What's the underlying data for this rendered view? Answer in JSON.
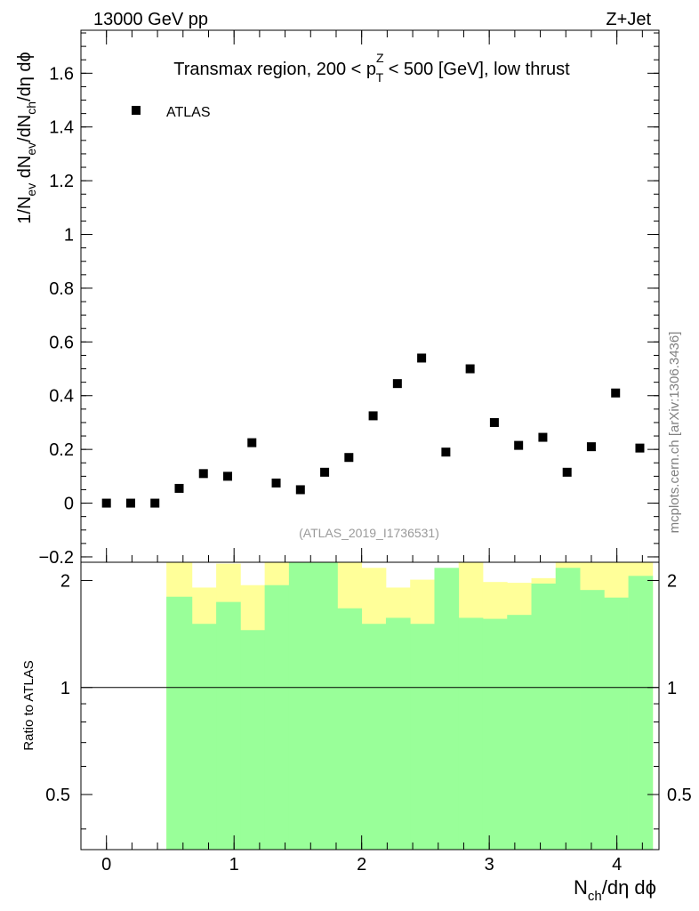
{
  "header": {
    "left": "13000 GeV pp",
    "right": "Z+Jet"
  },
  "side_label": "mcplots.cern.ch [arXiv:1306.3436]",
  "chart_data": [
    {
      "type": "scatter",
      "title_parts": [
        "Transmax region, 200 < p",
        "Z",
        "T",
        " < 500 [GeV], low thrust"
      ],
      "ylabel_parts": [
        "1/N",
        "ev",
        " dN",
        "ev",
        "/dN",
        "ch",
        "/dη dϕ"
      ],
      "watermark": "(ATLAS_2019_I1736531)",
      "xlim": [
        -0.2,
        4.33
      ],
      "ylim": [
        -0.22,
        1.76
      ],
      "yticks": [
        -0.2,
        0,
        0.2,
        0.4,
        0.6,
        0.8,
        1,
        1.2,
        1.4,
        1.6
      ],
      "ytick_labels": [
        "−0.2",
        "0",
        "0.2",
        "0.4",
        "0.6",
        "0.8",
        "1",
        "1.2",
        "1.4",
        "1.6"
      ],
      "legend_position": "top-left",
      "series": [
        {
          "name": "ATLAS",
          "marker": "square",
          "color": "#000000",
          "x": [
            0.0,
            0.19,
            0.38,
            0.57,
            0.76,
            0.95,
            1.14,
            1.33,
            1.52,
            1.71,
            1.9,
            2.09,
            2.28,
            2.47,
            2.66,
            2.85,
            3.04,
            3.23,
            3.42,
            3.61,
            3.8,
            3.99,
            4.18
          ],
          "y": [
            0.0,
            0.0,
            0.0,
            0.055,
            0.11,
            0.1,
            0.225,
            0.075,
            0.05,
            0.115,
            0.17,
            0.325,
            0.445,
            0.54,
            0.19,
            0.5,
            0.3,
            0.215,
            0.245,
            0.115,
            0.21,
            0.41,
            0.205
          ]
        }
      ]
    },
    {
      "type": "area",
      "ylabel": "Ratio to ATLAS",
      "xlabel_parts": [
        "N",
        "ch",
        "/dη dϕ"
      ],
      "xlim": [
        -0.2,
        4.33
      ],
      "ylim": [
        0.35,
        2.25
      ],
      "ratio_line": 1,
      "xticks": [
        0,
        1,
        2,
        3,
        4
      ],
      "xtick_labels": [
        "0",
        "1",
        "2",
        "3",
        "4"
      ],
      "yticks": [
        0.5,
        1,
        2
      ],
      "ytick_labels": [
        "0.5",
        "1",
        "2"
      ],
      "bin_edges": [
        0.47,
        0.67,
        0.86,
        1.05,
        1.24,
        1.43,
        1.62,
        1.81,
        2.0,
        2.19,
        2.38,
        2.57,
        2.76,
        2.95,
        3.14,
        3.33,
        3.52,
        3.71,
        3.9,
        4.09,
        4.28
      ],
      "bands": [
        {
          "name": "yellow-band",
          "color": "#ffff99",
          "low": [
            0.35,
            0.57,
            0.35,
            0.35,
            0.66,
            0.35,
            0.35,
            0.35,
            0.35,
            0.58,
            0.48,
            0.57,
            0.35,
            0.51,
            0.52,
            0.46,
            0.35,
            0.35,
            0.35,
            0.35
          ],
          "high": [
            2.25,
            1.91,
            2.23,
            1.94,
            2.25,
            2.25,
            2.25,
            2.25,
            2.17,
            1.91,
            2.01,
            1.91,
            2.25,
            1.98,
            1.97,
            2.03,
            2.25,
            2.25,
            2.25,
            2.25
          ]
        },
        {
          "name": "green-band",
          "color": "#99ff99",
          "low": [
            0.35,
            0.35,
            0.35,
            0.35,
            0.35,
            0.35,
            0.35,
            0.35,
            0.35,
            0.35,
            0.35,
            0.35,
            0.35,
            0.35,
            0.35,
            0.35,
            0.35,
            0.35,
            0.35,
            0.35
          ],
          "high": [
            1.8,
            1.51,
            1.74,
            1.45,
            1.94,
            2.25,
            2.25,
            1.67,
            1.51,
            1.57,
            1.51,
            2.17,
            1.57,
            1.56,
            1.6,
            1.96,
            2.17,
            1.88,
            1.79,
            2.06
          ]
        }
      ]
    }
  ]
}
